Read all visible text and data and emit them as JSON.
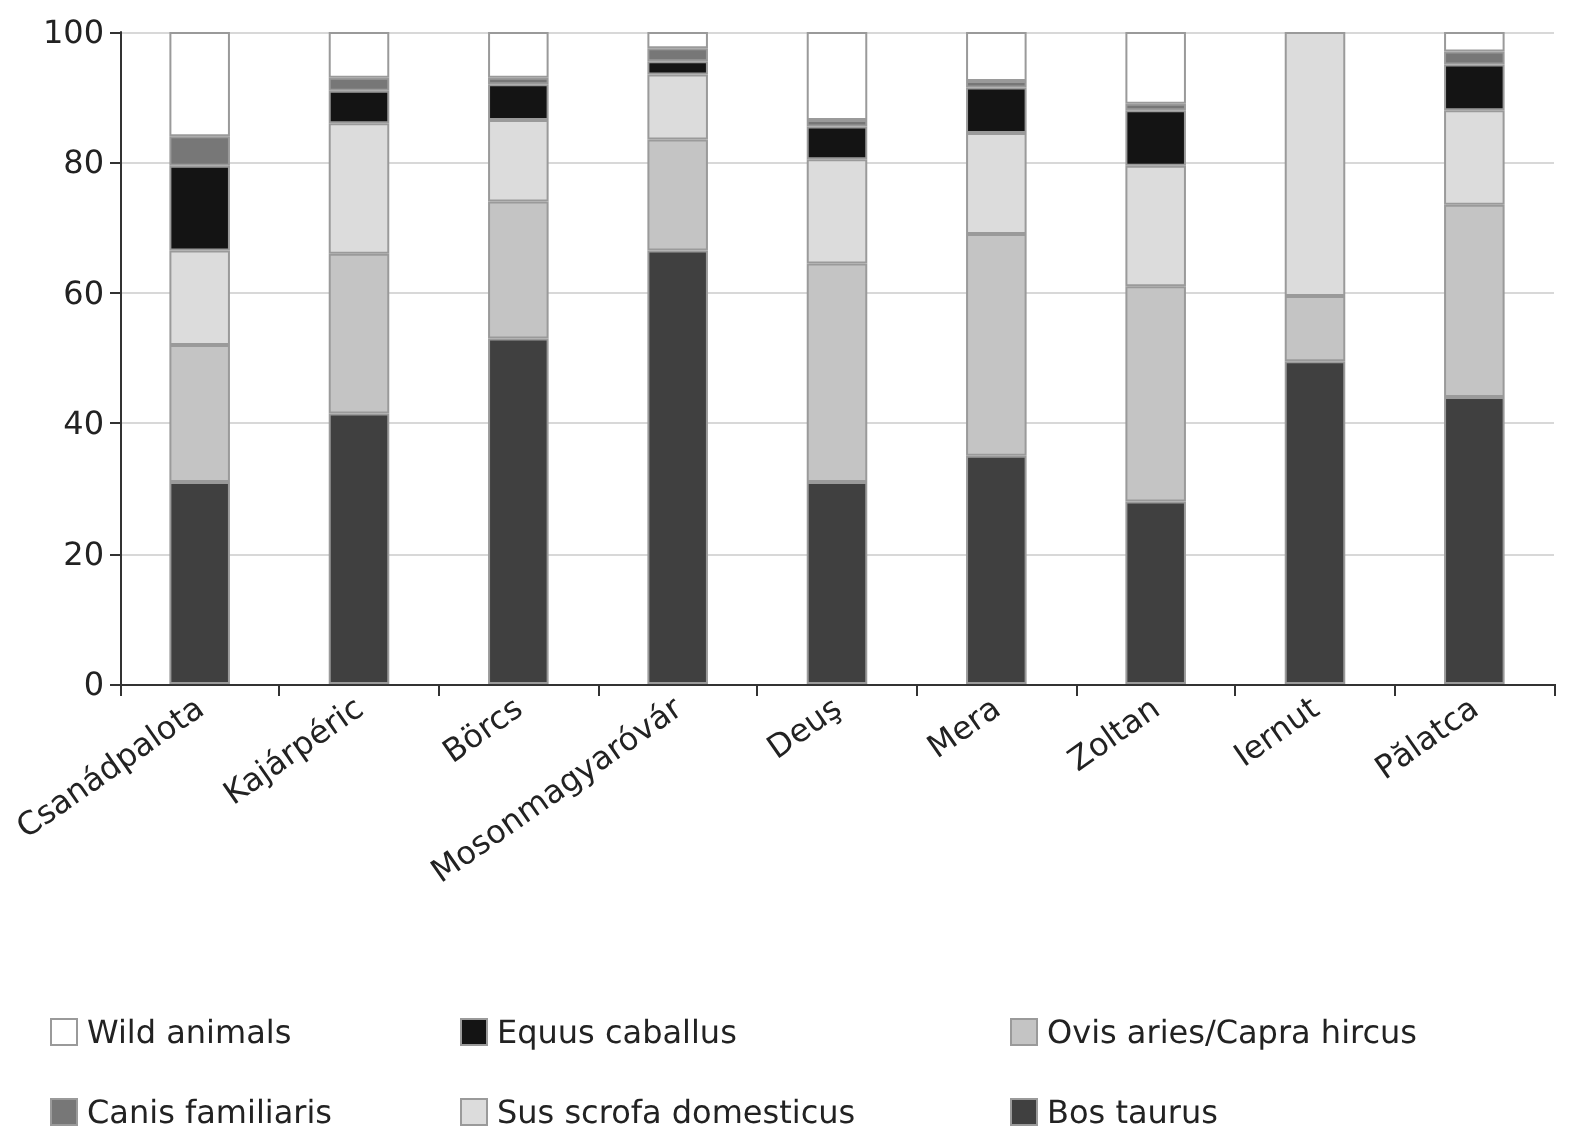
{
  "chart_data": {
    "type": "bar",
    "stacked": true,
    "categories": [
      "Csanádpalota",
      "Kajárpéric",
      "Börcs",
      "Mosonmagyaróvár",
      "Deuş",
      "Mera",
      "Zoltan",
      "Iernut",
      "Pălatca"
    ],
    "series": [
      {
        "name": "Bos taurus",
        "color": "#404040",
        "values": [
          31,
          41.5,
          53,
          66.5,
          31,
          35,
          28,
          49.5,
          44
        ]
      },
      {
        "name": "Ovis aries/Capra hircus",
        "color": "#c4c4c4",
        "values": [
          21,
          24.5,
          21,
          17,
          33.5,
          34,
          33,
          10,
          29.5
        ]
      },
      {
        "name": "Sus scrofa domesticus",
        "color": "#dcdcdc",
        "values": [
          14.5,
          20,
          12.5,
          10,
          16,
          15.5,
          18.5,
          40.5,
          14.5
        ]
      },
      {
        "name": "Equus caballus",
        "color": "#141414",
        "values": [
          13,
          5,
          5.5,
          2,
          5,
          7,
          8.5,
          0,
          7
        ]
      },
      {
        "name": "Canis familiaris",
        "color": "#777777",
        "values": [
          4.5,
          2,
          1,
          2,
          1,
          1,
          1,
          0,
          2
        ]
      },
      {
        "name": "Wild animals",
        "color": "#ffffff",
        "values": [
          16,
          7,
          7,
          2.5,
          13.5,
          7.5,
          11,
          0,
          3
        ]
      }
    ],
    "ylim": [
      0,
      100
    ],
    "yticks": [
      0,
      20,
      40,
      60,
      80,
      100
    ],
    "grid": "y",
    "legend": "bottom"
  }
}
